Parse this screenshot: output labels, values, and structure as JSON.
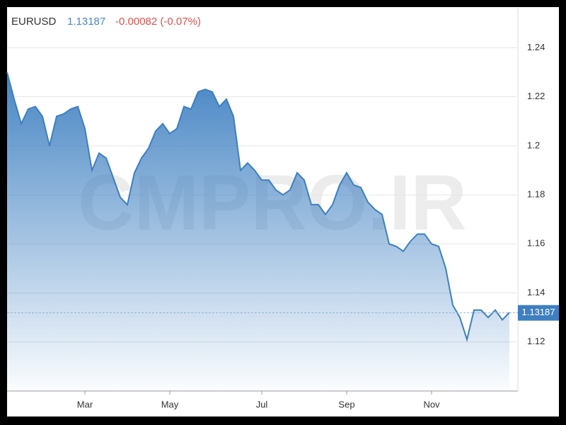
{
  "chart_data": {
    "type": "area",
    "symbol": "EURUSD",
    "last_price": 1.13187,
    "change": "-0.00082 (-0.07%)",
    "watermark": "CMPRO.IR",
    "categories": [
      null,
      null,
      null,
      null,
      null,
      null,
      null,
      null,
      null,
      null,
      null,
      "Mar",
      null,
      null,
      null,
      null,
      null,
      null,
      null,
      null,
      null,
      null,
      null,
      "May",
      null,
      null,
      null,
      null,
      null,
      null,
      null,
      null,
      null,
      null,
      null,
      null,
      "Jul",
      null,
      null,
      null,
      null,
      null,
      null,
      null,
      null,
      null,
      null,
      null,
      "Sep",
      null,
      null,
      null,
      null,
      null,
      null,
      null,
      null,
      null,
      null,
      null,
      "Nov",
      null,
      null,
      null,
      null,
      null,
      null,
      null,
      null,
      null,
      null,
      null
    ],
    "values": [
      1.23,
      1.219,
      1.209,
      1.215,
      1.216,
      1.212,
      1.2,
      1.212,
      1.213,
      1.215,
      1.216,
      1.207,
      1.19,
      1.197,
      1.195,
      1.187,
      1.179,
      1.176,
      1.189,
      1.195,
      1.199,
      1.206,
      1.209,
      1.205,
      1.207,
      1.216,
      1.215,
      1.222,
      1.223,
      1.222,
      1.216,
      1.219,
      1.212,
      1.19,
      1.193,
      1.19,
      1.186,
      1.186,
      1.182,
      1.18,
      1.182,
      1.189,
      1.186,
      1.176,
      1.176,
      1.172,
      1.176,
      1.184,
      1.189,
      1.184,
      1.183,
      1.177,
      1.174,
      1.172,
      1.16,
      1.159,
      1.157,
      1.161,
      1.164,
      1.164,
      1.16,
      1.159,
      1.15,
      1.135,
      1.13,
      1.121,
      1.133,
      1.133,
      1.13,
      1.133,
      1.129,
      1.132
    ],
    "color": "#3d7fc1",
    "ylim": [
      1.1,
      1.256
    ],
    "yticks": [
      1.12,
      1.14,
      1.16,
      1.18,
      1.2,
      1.22,
      1.24
    ],
    "grid": true
  }
}
